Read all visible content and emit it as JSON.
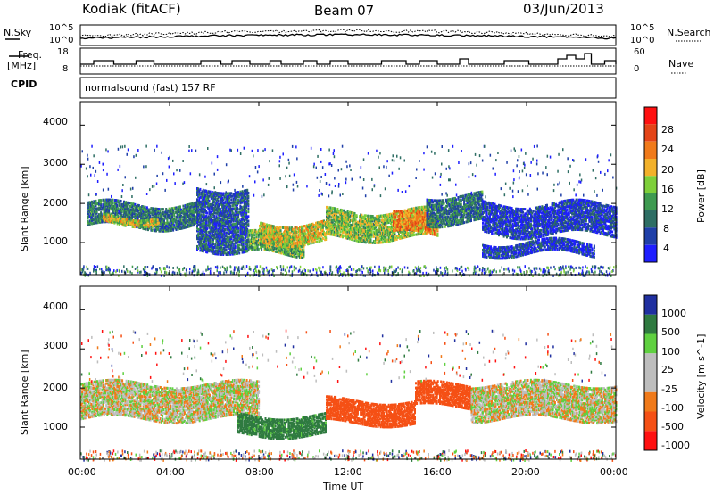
{
  "header": {
    "station": "Kodiak (fitACF)",
    "beam": "Beam 07",
    "date": "03/Jun/2013"
  },
  "noise_panel": {
    "left_label": "N.Sky",
    "right_label": "N.Search",
    "left_ticks": [
      "10^5",
      "10^0"
    ],
    "right_ticks": [
      "10^5",
      "10^0"
    ]
  },
  "freq_panel": {
    "left_label_1": "Freq.",
    "left_label_2": "[MHz]",
    "left_ticks": [
      "18",
      "8"
    ],
    "right_label": "Nave",
    "right_ticks": [
      "60",
      "0"
    ]
  },
  "cpid_panel": {
    "label": "CPID",
    "program": "normalsound (fast) 157 RF"
  },
  "x_axis": {
    "label": "Time UT",
    "ticks": [
      "00:00",
      "04:00",
      "08:00",
      "12:00",
      "16:00",
      "20:00",
      "00:00"
    ]
  },
  "power_panel": {
    "ylabel": "Slant Range [km]",
    "yticks": [
      "4000",
      "3000",
      "2000",
      "1000"
    ],
    "colorbar_label": "Power [dB]",
    "colorbar_ticks": [
      "28",
      "24",
      "20",
      "16",
      "12",
      "8",
      "4"
    ],
    "colors": [
      "#1e1eff",
      "#1f3fa8",
      "#2e6e64",
      "#3e9a50",
      "#7ecf3a",
      "#f2b12b",
      "#f07a1a",
      "#e44417",
      "#ff1010"
    ]
  },
  "velocity_panel": {
    "ylabel": "Slant Range [km]",
    "yticks": [
      "4000",
      "3000",
      "2000",
      "1000"
    ],
    "colorbar_label": "Velocity [m s^-1]",
    "colorbar_ticks": [
      "1000",
      "500",
      "100",
      "25",
      "-25",
      "-100",
      "-500",
      "-1000"
    ],
    "colors": [
      "#2030a0",
      "#2f7a40",
      "#5fd040",
      "#bdbdbd",
      "#bdbdbd",
      "#f07a1a",
      "#f55015",
      "#ff1010"
    ],
    "ground_color": "#bdbdbd"
  },
  "chart_data": {
    "type": "heatmap",
    "title": "Kodiak (fitACF)  Beam 07  03/Jun/2013",
    "xlabel": "Time UT",
    "ylabel": "Slant Range [km]",
    "xlim_hours": [
      0,
      24
    ],
    "ylim_km": [
      180,
      4600
    ],
    "freq_ylim_mhz": [
      8,
      18
    ],
    "nave_ylim": [
      0,
      60
    ],
    "power_colorbar_db": [
      4,
      8,
      12,
      16,
      20,
      24,
      28
    ],
    "velocity_colorbar_ms": [
      -1000,
      -500,
      -100,
      -25,
      25,
      100,
      500,
      1000
    ],
    "power_bands": [
      {
        "t0": 0.3,
        "t1": 5.2,
        "r0": 1400,
        "r1": 2000,
        "power_db": 10
      },
      {
        "t0": 1.0,
        "t1": 3.5,
        "r0": 1500,
        "r1": 1700,
        "power_db": 18
      },
      {
        "t0": 5.2,
        "t1": 7.5,
        "r0": 800,
        "r1": 2400,
        "power_db": 8
      },
      {
        "t0": 7.5,
        "t1": 10.0,
        "r0": 700,
        "r1": 1200,
        "power_db": 14
      },
      {
        "t0": 8.0,
        "t1": 11.0,
        "r0": 1000,
        "r1": 1500,
        "power_db": 18
      },
      {
        "t0": 11.0,
        "t1": 15.5,
        "r0": 1100,
        "r1": 1800,
        "power_db": 16
      },
      {
        "t0": 14.0,
        "t1": 16.0,
        "r0": 1200,
        "r1": 1700,
        "power_db": 22
      },
      {
        "t0": 15.5,
        "t1": 18.0,
        "r0": 1500,
        "r1": 2200,
        "power_db": 10
      },
      {
        "t0": 18.0,
        "t1": 24.0,
        "r0": 1200,
        "r1": 2000,
        "power_db": 6
      },
      {
        "t0": 18.0,
        "t1": 23.0,
        "r0": 700,
        "r1": 1000,
        "power_db": 6
      }
    ],
    "velocity_bands": [
      {
        "t0": 0.0,
        "t1": 8.0,
        "r0": 1200,
        "r1": 2100,
        "velocity_ms": 0
      },
      {
        "t0": 7.0,
        "t1": 11.0,
        "r0": 800,
        "r1": 1300,
        "velocity_ms": 150
      },
      {
        "t0": 11.0,
        "t1": 15.0,
        "r0": 1100,
        "r1": 1700,
        "velocity_ms": -300
      },
      {
        "t0": 15.0,
        "t1": 17.5,
        "r0": 1500,
        "r1": 2100,
        "velocity_ms": -200
      },
      {
        "t0": 17.5,
        "t1": 24.0,
        "r0": 1200,
        "r1": 2100,
        "velocity_ms": 0
      }
    ]
  }
}
